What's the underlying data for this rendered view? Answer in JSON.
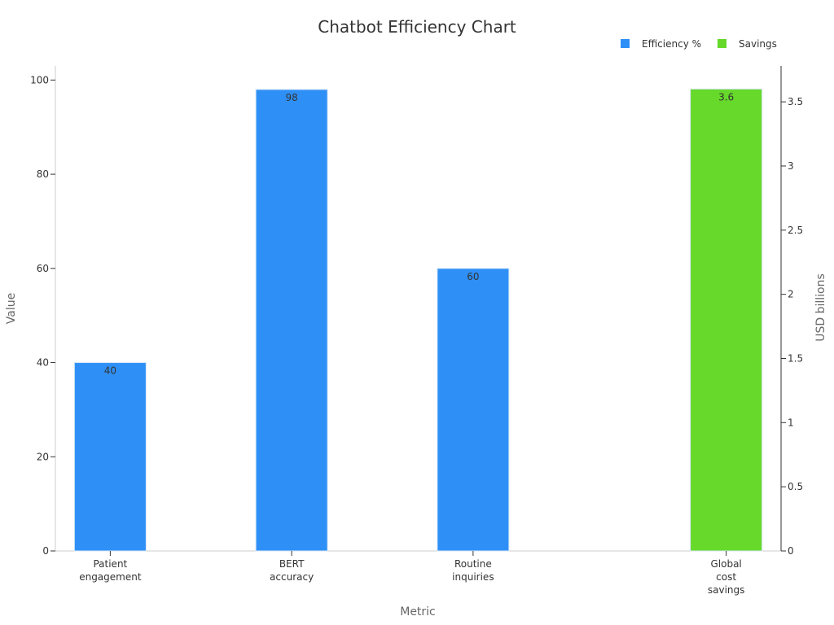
{
  "chart_data": {
    "type": "bar",
    "title": "Chatbot Efficiency Chart",
    "xlabel": "Metric",
    "ylabel": "Value",
    "y2label": "USD billions",
    "categories": [
      [
        "Patient",
        "engagement"
      ],
      [
        "BERT",
        "accuracy"
      ],
      [
        "Routine",
        "inquiries"
      ],
      [
        "Global",
        "cost",
        "savings"
      ]
    ],
    "series": [
      {
        "name": "Efficiency %",
        "axis": "left",
        "color": "#2E90F7",
        "values": [
          40,
          98,
          60,
          null
        ],
        "labels": [
          "40",
          "98",
          "60",
          ""
        ]
      },
      {
        "name": "Savings",
        "axis": "right",
        "color": "#66D92A",
        "values": [
          null,
          null,
          null,
          3.6
        ],
        "labels": [
          "",
          "",
          "",
          "3.6"
        ]
      }
    ],
    "ylim": [
      0,
      103
    ],
    "yticks": [
      0,
      20,
      40,
      60,
      80,
      100
    ],
    "y2lim": [
      0,
      3.78
    ],
    "y2ticks": [
      "0",
      "0.5",
      "1",
      "1.5",
      "2",
      "2.5",
      "3",
      "3.5"
    ],
    "grid": false,
    "legend": "top-right"
  }
}
